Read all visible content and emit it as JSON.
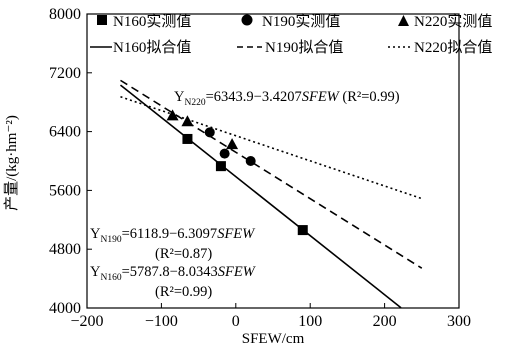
{
  "chart_data": {
    "type": "scatter",
    "xlabel": "SFEW/cm",
    "ylabel": "产量/(kg·hm⁻²)",
    "xlim": [
      -200,
      300
    ],
    "ylim": [
      4000,
      8000
    ],
    "x_ticks": [
      "-200",
      "-100",
      "0",
      "100",
      "200",
      "300"
    ],
    "y_ticks": [
      "4000",
      "4800",
      "5600",
      "6400",
      "7200",
      "8000"
    ],
    "legend": [
      {
        "label": "N160实测值",
        "marker": "square"
      },
      {
        "label": "N190实测值",
        "marker": "circle"
      },
      {
        "label": "N220实测值",
        "marker": "triangle"
      },
      {
        "label": "N160拟合值",
        "line": "solid"
      },
      {
        "label": "N190拟合值",
        "line": "dashed"
      },
      {
        "label": "N220拟合值",
        "line": "dotted"
      }
    ],
    "series": [
      {
        "name": "N160实测值",
        "marker": "square",
        "points": [
          [
            -65,
            6300
          ],
          [
            -20,
            5930
          ],
          [
            90,
            5060
          ]
        ]
      },
      {
        "name": "N190实测值",
        "marker": "circle",
        "points": [
          [
            -35,
            6390
          ],
          [
            -15,
            6100
          ],
          [
            20,
            6000
          ]
        ]
      },
      {
        "name": "N220实测值",
        "marker": "triangle",
        "points": [
          [
            -85,
            6620
          ],
          [
            -65,
            6540
          ],
          [
            -5,
            6230
          ]
        ]
      }
    ],
    "fits": [
      {
        "name": "N160拟合值",
        "style": "solid",
        "intercept": 5787.8,
        "slope": -8.0343,
        "x_range": [
          -155,
          222
        ]
      },
      {
        "name": "N190拟合值",
        "style": "dashed",
        "intercept": 6118.9,
        "slope": -6.3097,
        "x_range": [
          -155,
          250
        ]
      },
      {
        "name": "N220拟合值",
        "style": "dotted",
        "intercept": 6343.9,
        "slope": -3.4207,
        "x_range": [
          -155,
          250
        ]
      }
    ],
    "annotations": {
      "n220": {
        "y": "Y",
        "sub": "N220",
        "eq": "=6343.9−3.4207",
        "var": "SFEW",
        "r2": " (R²=0.99)"
      },
      "n190": {
        "y": "Y",
        "sub": "N190",
        "eq": "=6118.9−6.3097",
        "var": "SFEW",
        "r2": "(R²=0.87)"
      },
      "n160": {
        "y": "Y",
        "sub": "N160",
        "eq": "=5787.8−8.0343",
        "var": "SFEW",
        "r2": "(R²=0.99)"
      }
    }
  }
}
